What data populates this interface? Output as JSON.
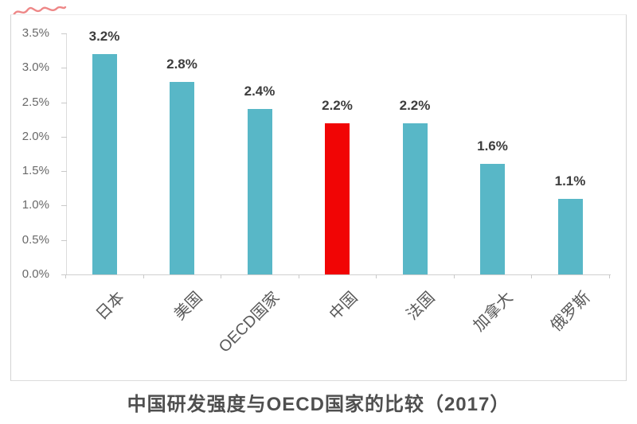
{
  "title": {
    "text": "中国研发强度与OECD国家的比较（2017）"
  },
  "chart_data": {
    "type": "bar",
    "title": "中国研发强度与OECD国家的比较（2017）",
    "categories": [
      "日本",
      "美国",
      "OECD国家",
      "中国",
      "法国",
      "加拿大",
      "俄罗斯"
    ],
    "values": [
      3.2,
      2.8,
      2.4,
      2.2,
      2.2,
      1.6,
      1.1
    ],
    "bar_labels": [
      "3.2%",
      "2.8%",
      "2.4%",
      "2.2%",
      "2.2%",
      "1.6%",
      "1.1%"
    ],
    "xlabel": "",
    "ylabel": "",
    "ylim": [
      0,
      3.5
    ],
    "ytick_labels": [
      "0.0%",
      "0.5%",
      "1.0%",
      "1.5%",
      "2.0%",
      "2.5%",
      "3.0%",
      "3.5%"
    ],
    "grid": false,
    "legend": null,
    "colors": {
      "default_bar": "#58b7c7",
      "highlight_bar": "#f10505",
      "value_label_text": "#3d3d3d",
      "axis_text": "#696969",
      "category_text": "#595959",
      "title_text": "#4f4f4f",
      "scribble_mark": "#e96060"
    },
    "highlight_index": 3,
    "highlight_category": "中国"
  }
}
